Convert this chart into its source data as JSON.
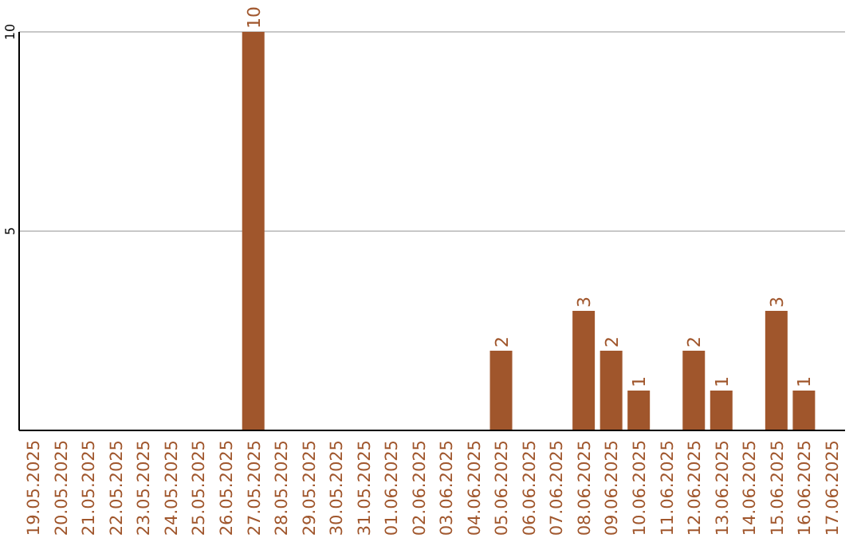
{
  "chart_data": {
    "type": "bar",
    "categories": [
      "19.05.2025",
      "20.05.2025",
      "21.05.2025",
      "22.05.2025",
      "23.05.2025",
      "24.05.2025",
      "25.05.2025",
      "26.05.2025",
      "27.05.2025",
      "28.05.2025",
      "29.05.2025",
      "30.05.2025",
      "31.05.2025",
      "01.06.2025",
      "02.06.2025",
      "03.06.2025",
      "04.06.2025",
      "05.06.2025",
      "06.06.2025",
      "07.06.2025",
      "08.06.2025",
      "09.06.2025",
      "10.06.2025",
      "11.06.2025",
      "12.06.2025",
      "13.06.2025",
      "14.06.2025",
      "15.06.2025",
      "16.06.2025",
      "17.06.2025"
    ],
    "values": [
      0,
      0,
      0,
      0,
      0,
      0,
      0,
      0,
      10,
      0,
      0,
      0,
      0,
      0,
      0,
      0,
      0,
      2,
      0,
      0,
      3,
      2,
      1,
      0,
      2,
      1,
      0,
      3,
      1,
      0
    ],
    "value_labels": [
      null,
      null,
      null,
      null,
      null,
      null,
      null,
      null,
      "10",
      null,
      null,
      null,
      null,
      null,
      null,
      null,
      null,
      "2",
      null,
      null,
      "3",
      "2",
      "1",
      null,
      "2",
      "1",
      null,
      "3",
      "1",
      null
    ],
    "color": "#a0562c",
    "ylim": [
      0,
      10
    ],
    "yticks": [
      5,
      10
    ],
    "grid": "y"
  }
}
